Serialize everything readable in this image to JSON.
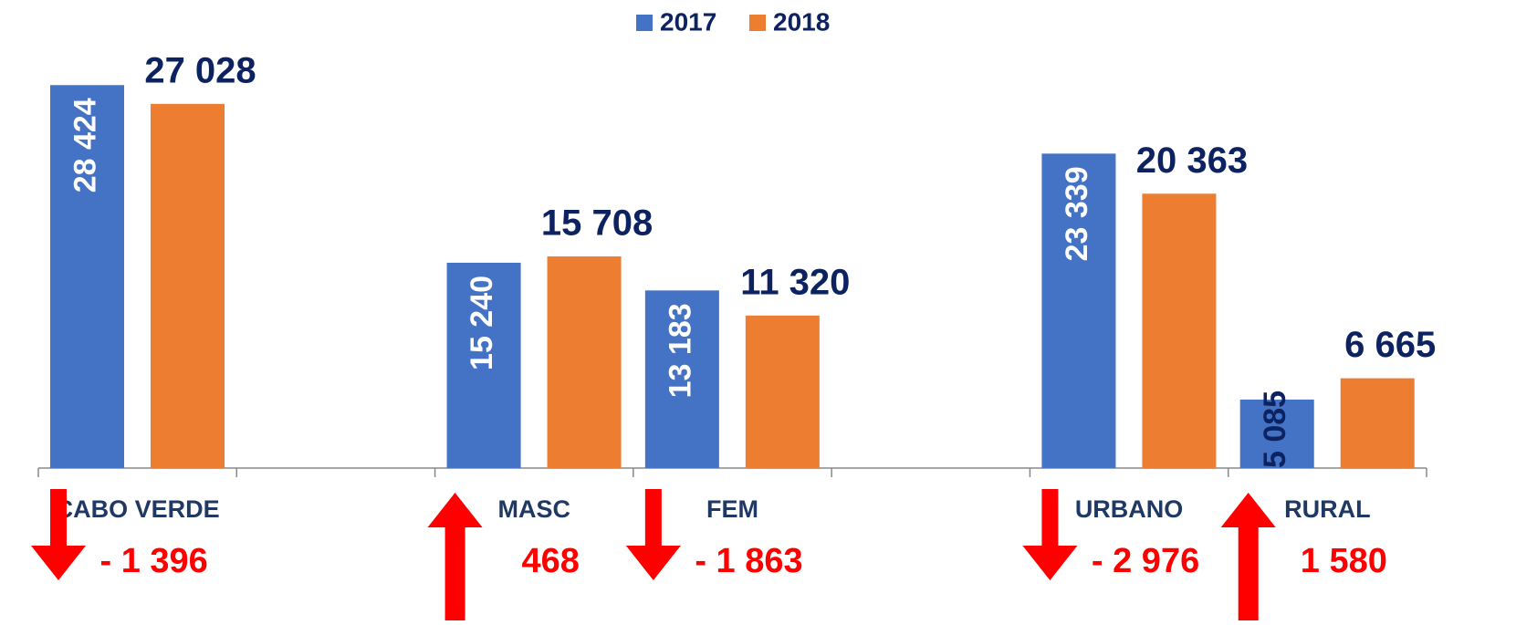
{
  "chart_data": {
    "type": "bar",
    "categories": [
      "CABO VERDE",
      null,
      "MASC",
      "FEM",
      null,
      "URBANO",
      "RURAL"
    ],
    "series": [
      {
        "name": "2017",
        "color": "#4472c4",
        "values": [
          28424,
          null,
          15240,
          13183,
          null,
          23339,
          5085
        ],
        "value_labels": [
          "28 424",
          null,
          "15 240",
          "13 183",
          null,
          "23 339",
          "5 085"
        ]
      },
      {
        "name": "2018",
        "color": "#ed7d31",
        "values": [
          27028,
          null,
          15708,
          11320,
          null,
          20363,
          6665
        ],
        "value_labels": [
          "27 028",
          null,
          "15 708",
          "11 320",
          null,
          "20 363",
          "6 665"
        ]
      }
    ],
    "changes": [
      "- 1 396",
      null,
      "468",
      "- 1 863",
      null,
      "- 2 976",
      "1 580"
    ],
    "change_directions": [
      "down",
      null,
      "up",
      "down",
      null,
      "down",
      "up"
    ],
    "ylim": [
      0,
      30000
    ],
    "legend": "top"
  }
}
